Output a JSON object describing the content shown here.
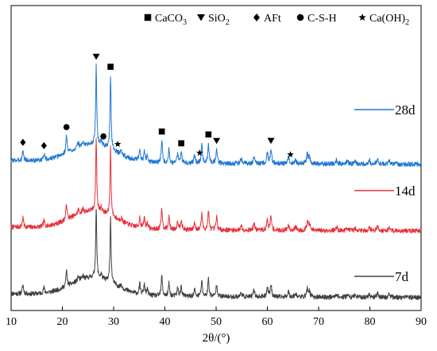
{
  "chart_data": {
    "type": "line",
    "title": "",
    "xlabel": "2θ/(°)",
    "ylabel": "",
    "xlim": [
      10,
      90
    ],
    "x_ticks": [
      10,
      20,
      30,
      40,
      50,
      60,
      70,
      80,
      90
    ],
    "y_axis_visible": false,
    "grid": false,
    "legend": {
      "placement": "top",
      "entries": [
        {
          "marker": "square",
          "label": "CaCO",
          "sub": "3"
        },
        {
          "marker": "triangle-down",
          "label": "SiO",
          "sub": "2"
        },
        {
          "marker": "diamond",
          "label": "AFt",
          "sub": ""
        },
        {
          "marker": "circle",
          "label": "C-S-H",
          "sub": ""
        },
        {
          "marker": "star",
          "label": "Ca(OH)",
          "sub": "2"
        }
      ]
    },
    "peaks": [
      {
        "pos": 12.3,
        "h": 0.2,
        "w": 0.15
      },
      {
        "pos": 16.4,
        "h": 0.12,
        "w": 0.15
      },
      {
        "pos": 20.8,
        "h": 0.35,
        "w": 0.14
      },
      {
        "pos": 23.1,
        "h": 0.1,
        "w": 0.15
      },
      {
        "pos": 24.0,
        "h": 0.08,
        "w": 0.15
      },
      {
        "pos": 26.6,
        "h": 1.55,
        "w": 0.12
      },
      {
        "pos": 27.6,
        "h": 0.1,
        "w": 0.15
      },
      {
        "pos": 29.4,
        "h": 1.45,
        "w": 0.12
      },
      {
        "pos": 31.5,
        "h": 0.08,
        "w": 0.15
      },
      {
        "pos": 35.1,
        "h": 0.22,
        "w": 0.15
      },
      {
        "pos": 36.0,
        "h": 0.22,
        "w": 0.15
      },
      {
        "pos": 36.6,
        "h": 0.12,
        "w": 0.15
      },
      {
        "pos": 39.4,
        "h": 0.45,
        "w": 0.14
      },
      {
        "pos": 40.8,
        "h": 0.28,
        "w": 0.14
      },
      {
        "pos": 42.5,
        "h": 0.18,
        "w": 0.15
      },
      {
        "pos": 43.2,
        "h": 0.22,
        "w": 0.15
      },
      {
        "pos": 45.8,
        "h": 0.15,
        "w": 0.15
      },
      {
        "pos": 47.2,
        "h": 0.35,
        "w": 0.14
      },
      {
        "pos": 48.5,
        "h": 0.4,
        "w": 0.14
      },
      {
        "pos": 50.1,
        "h": 0.28,
        "w": 0.15
      },
      {
        "pos": 54.9,
        "h": 0.1,
        "w": 0.16
      },
      {
        "pos": 57.4,
        "h": 0.15,
        "w": 0.16
      },
      {
        "pos": 60.0,
        "h": 0.22,
        "w": 0.16
      },
      {
        "pos": 60.7,
        "h": 0.28,
        "w": 0.16
      },
      {
        "pos": 64.1,
        "h": 0.12,
        "w": 0.18
      },
      {
        "pos": 65.5,
        "h": 0.08,
        "w": 0.18
      },
      {
        "pos": 67.8,
        "h": 0.18,
        "w": 0.18
      },
      {
        "pos": 68.2,
        "h": 0.12,
        "w": 0.18
      },
      {
        "pos": 73.5,
        "h": 0.08,
        "w": 0.18
      },
      {
        "pos": 75.6,
        "h": 0.06,
        "w": 0.18
      },
      {
        "pos": 77.2,
        "h": 0.05,
        "w": 0.18
      },
      {
        "pos": 79.9,
        "h": 0.07,
        "w": 0.18
      },
      {
        "pos": 81.5,
        "h": 0.1,
        "w": 0.18
      },
      {
        "pos": 83.8,
        "h": 0.07,
        "w": 0.18
      }
    ],
    "series": [
      {
        "name": "28d",
        "color": "#1f77d4",
        "offset": 2.6,
        "scale": 1.0,
        "seed": 3
      },
      {
        "name": "14d",
        "color": "#e8303a",
        "offset": 1.3,
        "scale": 0.92,
        "seed": 7
      },
      {
        "name": "7d",
        "color": "#404040",
        "offset": 0.0,
        "scale": 0.88,
        "seed": 11
      }
    ],
    "phase_annotations": [
      {
        "marker": "diamond",
        "x": 12.3
      },
      {
        "marker": "diamond",
        "x": 16.4
      },
      {
        "marker": "circle",
        "x": 20.8
      },
      {
        "marker": "triangle-down",
        "x": 26.6
      },
      {
        "marker": "circle",
        "x": 28.0
      },
      {
        "marker": "square",
        "x": 29.4
      },
      {
        "marker": "star",
        "x": 30.8
      },
      {
        "marker": "square",
        "x": 39.4
      },
      {
        "marker": "square",
        "x": 43.2
      },
      {
        "marker": "star",
        "x": 46.8
      },
      {
        "marker": "square",
        "x": 48.5
      },
      {
        "marker": "triangle-down",
        "x": 50.1
      },
      {
        "marker": "triangle-down",
        "x": 60.7
      },
      {
        "marker": "star",
        "x": 64.5
      }
    ]
  }
}
